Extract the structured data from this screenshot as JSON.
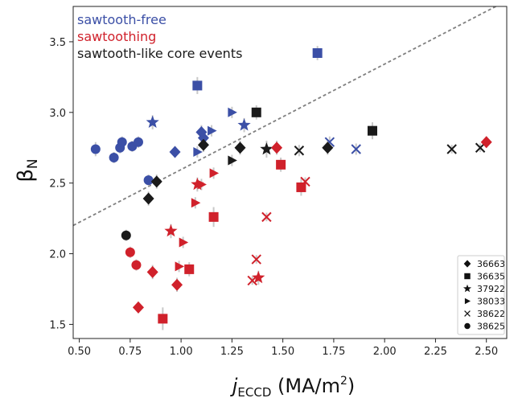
{
  "chart_data": {
    "type": "scatter",
    "xlabel": {
      "main": "j",
      "sub": "ECCD",
      "units_pre": " (MA/m",
      "units_sup": "2",
      "units_post": ")"
    },
    "ylabel": {
      "main": "β",
      "sub": "N"
    },
    "xlim": [
      0.47,
      2.6
    ],
    "ylim": [
      1.4,
      3.75
    ],
    "xticks": [
      0.5,
      0.75,
      1.0,
      1.25,
      1.5,
      1.75,
      2.0,
      2.25,
      2.5
    ],
    "xtick_labels": [
      "0.50",
      "0.75",
      "1.00",
      "1.25",
      "1.50",
      "1.75",
      "2.00",
      "2.25",
      "2.50"
    ],
    "yticks": [
      1.5,
      2.0,
      2.5,
      3.0,
      3.5
    ],
    "ytick_labels": [
      "1.5",
      "2.0",
      "2.5",
      "3.0",
      "3.5"
    ],
    "grid": false,
    "colors": {
      "free": "#3b4fa6",
      "saw": "#d0212b",
      "core": "#1a1a1a",
      "errorbar": "#c8c8c8",
      "line": "#808080"
    },
    "category_legend": [
      {
        "key": "free",
        "label": "sawtooth-free",
        "color": "#3b4fa6"
      },
      {
        "key": "saw",
        "label": "sawtoothing",
        "color": "#d0212b"
      },
      {
        "key": "core",
        "label": "sawtooth-like core events",
        "color": "#1a1a1a"
      }
    ],
    "marker_legend": [
      {
        "marker": "diamond",
        "label": "36663"
      },
      {
        "marker": "square",
        "label": "36635"
      },
      {
        "marker": "star",
        "label": "37922"
      },
      {
        "marker": "triangle",
        "label": "38033"
      },
      {
        "marker": "x",
        "label": "38622"
      },
      {
        "marker": "circle",
        "label": "38625"
      }
    ],
    "boundary_line": {
      "style": "dashed",
      "x": [
        0.47,
        2.6
      ],
      "y": [
        2.2,
        3.79
      ]
    },
    "points": [
      {
        "x": 0.58,
        "y": 2.74,
        "m": "circle",
        "c": "free",
        "e": 0.05
      },
      {
        "x": 0.67,
        "y": 2.68,
        "m": "circle",
        "c": "free",
        "e": 0.04
      },
      {
        "x": 0.7,
        "y": 2.75,
        "m": "circle",
        "c": "free",
        "e": 0.04
      },
      {
        "x": 0.71,
        "y": 2.79,
        "m": "circle",
        "c": "free",
        "e": 0.04
      },
      {
        "x": 0.76,
        "y": 2.76,
        "m": "circle",
        "c": "free",
        "e": 0.04
      },
      {
        "x": 0.79,
        "y": 2.79,
        "m": "circle",
        "c": "free",
        "e": 0.04
      },
      {
        "x": 0.84,
        "y": 2.52,
        "m": "circle",
        "c": "free",
        "e": 0.04
      },
      {
        "x": 0.86,
        "y": 2.93,
        "m": "star",
        "c": "free",
        "e": 0.05
      },
      {
        "x": 0.97,
        "y": 2.72,
        "m": "diamond",
        "c": "free",
        "e": 0.04
      },
      {
        "x": 1.08,
        "y": 3.19,
        "m": "square",
        "c": "free",
        "e": 0.06
      },
      {
        "x": 1.08,
        "y": 2.72,
        "m": "triangle",
        "c": "free",
        "e": 0.04
      },
      {
        "x": 1.1,
        "y": 2.86,
        "m": "diamond",
        "c": "free",
        "e": 0.05
      },
      {
        "x": 1.11,
        "y": 2.82,
        "m": "diamond",
        "c": "free",
        "e": 0.05
      },
      {
        "x": 1.15,
        "y": 2.87,
        "m": "triangle",
        "c": "free",
        "e": 0.04
      },
      {
        "x": 1.25,
        "y": 3.0,
        "m": "triangle",
        "c": "free",
        "e": 0.04
      },
      {
        "x": 1.31,
        "y": 2.91,
        "m": "star",
        "c": "free",
        "e": 0.05
      },
      {
        "x": 1.67,
        "y": 3.42,
        "m": "square",
        "c": "free",
        "e": 0.05
      },
      {
        "x": 1.73,
        "y": 2.79,
        "m": "x",
        "c": "free",
        "e": 0.04
      },
      {
        "x": 1.86,
        "y": 2.74,
        "m": "x",
        "c": "free",
        "e": 0.04
      },
      {
        "x": 0.73,
        "y": 2.13,
        "m": "circle",
        "c": "core",
        "e": 0.04
      },
      {
        "x": 0.84,
        "y": 2.39,
        "m": "diamond",
        "c": "core",
        "e": 0.05
      },
      {
        "x": 0.88,
        "y": 2.51,
        "m": "diamond",
        "c": "core",
        "e": 0.05
      },
      {
        "x": 1.11,
        "y": 2.77,
        "m": "diamond",
        "c": "core",
        "e": 0.05
      },
      {
        "x": 1.25,
        "y": 2.66,
        "m": "triangle",
        "c": "core",
        "e": 0.04
      },
      {
        "x": 1.29,
        "y": 2.75,
        "m": "diamond",
        "c": "core",
        "e": 0.05
      },
      {
        "x": 1.37,
        "y": 3.0,
        "m": "square",
        "c": "core",
        "e": 0.05
      },
      {
        "x": 1.42,
        "y": 2.74,
        "m": "star",
        "c": "core",
        "e": 0.06
      },
      {
        "x": 1.58,
        "y": 2.73,
        "m": "x",
        "c": "core",
        "e": 0.04
      },
      {
        "x": 1.72,
        "y": 2.75,
        "m": "diamond",
        "c": "core",
        "e": 0.05
      },
      {
        "x": 1.94,
        "y": 2.87,
        "m": "square",
        "c": "core",
        "e": 0.06
      },
      {
        "x": 2.33,
        "y": 2.74,
        "m": "x",
        "c": "core",
        "e": 0.03
      },
      {
        "x": 2.47,
        "y": 2.75,
        "m": "x",
        "c": "core",
        "e": 0.03
      },
      {
        "x": 0.75,
        "y": 2.01,
        "m": "circle",
        "c": "saw",
        "e": 0.04
      },
      {
        "x": 0.78,
        "y": 1.92,
        "m": "circle",
        "c": "saw",
        "e": 0.04
      },
      {
        "x": 0.79,
        "y": 1.62,
        "m": "diamond",
        "c": "saw",
        "e": 0.04
      },
      {
        "x": 0.86,
        "y": 1.87,
        "m": "diamond",
        "c": "saw",
        "e": 0.05
      },
      {
        "x": 0.91,
        "y": 1.54,
        "m": "square",
        "c": "saw",
        "e": 0.08
      },
      {
        "x": 0.95,
        "y": 2.16,
        "m": "star",
        "c": "saw",
        "e": 0.05
      },
      {
        "x": 0.98,
        "y": 1.78,
        "m": "diamond",
        "c": "saw",
        "e": 0.05
      },
      {
        "x": 0.99,
        "y": 1.91,
        "m": "triangle",
        "c": "saw",
        "e": 0.04
      },
      {
        "x": 1.01,
        "y": 2.08,
        "m": "triangle",
        "c": "saw",
        "e": 0.04
      },
      {
        "x": 1.04,
        "y": 1.89,
        "m": "square",
        "c": "saw",
        "e": 0.05
      },
      {
        "x": 1.07,
        "y": 2.36,
        "m": "triangle",
        "c": "saw",
        "e": 0.04
      },
      {
        "x": 1.08,
        "y": 2.49,
        "m": "star",
        "c": "saw",
        "e": 0.05
      },
      {
        "x": 1.1,
        "y": 2.49,
        "m": "triangle",
        "c": "saw",
        "e": 0.04
      },
      {
        "x": 1.16,
        "y": 2.57,
        "m": "triangle",
        "c": "saw",
        "e": 0.04
      },
      {
        "x": 1.16,
        "y": 2.26,
        "m": "square",
        "c": "saw",
        "e": 0.07
      },
      {
        "x": 1.35,
        "y": 1.81,
        "m": "x",
        "c": "saw",
        "e": 0.03
      },
      {
        "x": 1.37,
        "y": 1.96,
        "m": "x",
        "c": "saw",
        "e": 0.03
      },
      {
        "x": 1.38,
        "y": 1.83,
        "m": "star",
        "c": "saw",
        "e": 0.05
      },
      {
        "x": 1.42,
        "y": 2.26,
        "m": "x",
        "c": "saw",
        "e": 0.03
      },
      {
        "x": 1.47,
        "y": 2.75,
        "m": "diamond",
        "c": "saw",
        "e": 0.05
      },
      {
        "x": 1.49,
        "y": 2.63,
        "m": "square",
        "c": "saw",
        "e": 0.05
      },
      {
        "x": 1.59,
        "y": 2.47,
        "m": "square",
        "c": "saw",
        "e": 0.06
      },
      {
        "x": 1.61,
        "y": 2.51,
        "m": "x",
        "c": "saw",
        "e": 0.03
      },
      {
        "x": 2.5,
        "y": 2.79,
        "m": "diamond",
        "c": "saw",
        "e": 0.04
      }
    ]
  }
}
